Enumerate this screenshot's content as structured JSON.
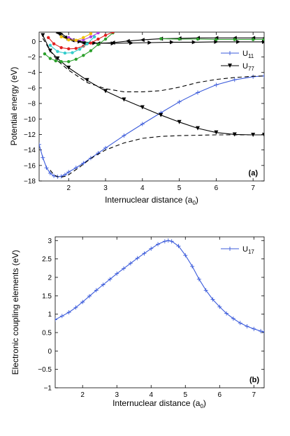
{
  "chart_data": [
    {
      "type": "line",
      "panel_label": "(a)",
      "xlabel": "Internuclear distance (a",
      "xlabel_sub": "0",
      "xlabel_end": ")",
      "ylabel": "Potential energy (eV)",
      "xlim": [
        1.2,
        7.3
      ],
      "ylim": [
        -18,
        1.2
      ],
      "xticks": [
        "2",
        "3",
        "4",
        "5",
        "6",
        "7"
      ],
      "yticks": [
        "0",
        "−2",
        "−4",
        "−6",
        "−8",
        "−10",
        "−12",
        "−14",
        "−16",
        "−18"
      ],
      "legend_placement": "top-right",
      "series": [
        {
          "name": "U",
          "sub": "11",
          "color": "#3b5bdb",
          "marker": "plus",
          "x": [
            1.2,
            1.3,
            1.4,
            1.5,
            1.6,
            1.7,
            1.8,
            1.9,
            2.0,
            2.2,
            2.4,
            2.6,
            2.8,
            3.0,
            3.5,
            4.0,
            4.5,
            5.0,
            5.5,
            6.0,
            6.5,
            7.0,
            7.3
          ],
          "y": [
            -13.3,
            -15.0,
            -16.3,
            -17.0,
            -17.35,
            -17.45,
            -17.4,
            -17.2,
            -16.85,
            -16.3,
            -15.7,
            -15.05,
            -14.4,
            -13.75,
            -12.15,
            -10.65,
            -9.2,
            -7.8,
            -6.6,
            -5.6,
            -4.95,
            -4.55,
            -4.45
          ]
        },
        {
          "name": "U",
          "sub": "77",
          "color": "#000000",
          "marker": "tri-down",
          "x": [
            1.3,
            1.5,
            1.7,
            2.0,
            2.5,
            3.0,
            3.5,
            4.0,
            4.5,
            5.0,
            5.5,
            6.0,
            6.5,
            7.0,
            7.3
          ],
          "y": [
            0.8,
            -1.2,
            -2.2,
            -3.4,
            -5.0,
            -6.4,
            -7.5,
            -8.5,
            -9.5,
            -10.4,
            -11.2,
            -11.75,
            -12.0,
            -12.05,
            -12.05
          ]
        },
        {
          "name": "",
          "color": "#000000",
          "marker": "tri-left",
          "x": [
            1.7,
            1.9,
            2.1,
            2.4,
            2.8,
            3.2,
            3.6,
            4.0,
            4.5,
            5.0,
            5.5,
            6.0,
            6.5,
            7.0,
            7.3
          ],
          "y": [
            1.1,
            0.5,
            0.15,
            -0.2,
            -0.25,
            -0.15,
            0.05,
            0.2,
            0.35,
            0.4,
            0.45,
            0.45,
            0.45,
            0.45,
            0.45
          ]
        },
        {
          "name": "",
          "color": "#000000",
          "marker": "tri-right",
          "x": [
            1.8,
            2.0,
            2.3,
            2.7,
            3.2,
            3.7,
            4.2,
            4.8,
            5.4,
            6.0,
            6.6,
            7.3
          ],
          "y": [
            1.0,
            0.4,
            0.0,
            -0.2,
            -0.25,
            -0.2,
            -0.15,
            -0.1,
            -0.1,
            -0.05,
            -0.05,
            -0.05
          ]
        },
        {
          "name": "",
          "color": "#2ca02c",
          "marker": "dot",
          "x": [
            1.35,
            1.5,
            1.65,
            1.8,
            2.0,
            2.2,
            2.4,
            2.6,
            2.8,
            3.0,
            3.2
          ],
          "y": [
            -1.6,
            -2.2,
            -2.5,
            -2.6,
            -2.6,
            -2.3,
            -1.8,
            -1.2,
            -0.4,
            0.3,
            1.1
          ]
        },
        {
          "name": "",
          "color": "#2ca02c",
          "marker": "dot",
          "x": [
            4.5,
            5.0,
            5.5,
            6.0,
            6.5,
            7.0,
            7.3
          ],
          "y": [
            0.35,
            0.3,
            0.3,
            0.25,
            0.25,
            0.25,
            0.25
          ]
        },
        {
          "name": "",
          "color": "#e02020",
          "marker": "dot",
          "x": [
            1.45,
            1.6,
            1.8,
            2.0,
            2.2,
            2.4,
            2.6,
            2.8,
            3.0,
            3.2
          ],
          "y": [
            0.5,
            -0.3,
            -0.8,
            -0.95,
            -0.9,
            -0.6,
            -0.2,
            0.3,
            0.8,
            1.2
          ]
        },
        {
          "name": "",
          "color": "#33cccc",
          "marker": "dot",
          "x": [
            1.5,
            1.7,
            1.9,
            2.1,
            2.3,
            2.5,
            2.7
          ],
          "y": [
            -0.5,
            -1.3,
            -1.5,
            -1.45,
            -1.0,
            -0.3,
            0.6
          ]
        },
        {
          "name": "",
          "color": "#b040e0",
          "marker": "dot",
          "x": [
            2.0,
            2.2,
            2.4,
            2.6,
            2.8
          ],
          "y": [
            0.5,
            0.1,
            0.2,
            0.6,
            1.1
          ]
        },
        {
          "name": "",
          "color": "#f0c000",
          "marker": "dot",
          "x": [
            1.8,
            2.0,
            2.2,
            2.4,
            2.6
          ],
          "y": [
            0.6,
            0.2,
            0.15,
            0.5,
            1.0
          ]
        },
        {
          "name": "",
          "color": "#000000",
          "marker": "none",
          "dash": true,
          "x": [
            1.3,
            1.5,
            1.7,
            2.0,
            2.5,
            3.0,
            3.5,
            4.0,
            4.5,
            5.0,
            5.5,
            6.0,
            6.5,
            7.0,
            7.3
          ],
          "y": [
            0.4,
            -1.2,
            -2.5,
            -3.7,
            -5.3,
            -6.1,
            -6.5,
            -6.5,
            -6.35,
            -5.9,
            -5.3,
            -4.9,
            -4.65,
            -4.5,
            -4.45
          ]
        },
        {
          "name": "",
          "color": "#000000",
          "marker": "none",
          "dash": true,
          "x": [
            1.5,
            1.6,
            1.7,
            1.8,
            1.9,
            2.0,
            2.3,
            2.6,
            3.0,
            3.5,
            4.0,
            4.5,
            5.0,
            6.0,
            7.0,
            7.3
          ],
          "y": [
            -16.6,
            -17.2,
            -17.45,
            -17.5,
            -17.4,
            -17.2,
            -16.2,
            -15.1,
            -14.0,
            -13.1,
            -12.5,
            -12.25,
            -12.15,
            -12.05,
            -12.05,
            -12.05
          ]
        }
      ]
    },
    {
      "type": "line",
      "panel_label": "(b)",
      "xlabel": "Internuclear distance (a",
      "xlabel_sub": "0",
      "xlabel_end": ")",
      "ylabel": "Electronic coupling elements (eV)",
      "xlim": [
        1.2,
        7.3
      ],
      "ylim": [
        -1,
        3.1
      ],
      "xticks": [
        "2",
        "3",
        "4",
        "5",
        "6",
        "7"
      ],
      "yticks": [
        "3",
        "2.5",
        "2",
        "1.5",
        "1",
        "0.5",
        "0",
        "−0.5",
        "−1"
      ],
      "legend_placement": "top-right",
      "series": [
        {
          "name": "U",
          "sub": "17",
          "color": "#3b5bdb",
          "marker": "plus",
          "x": [
            1.2,
            1.4,
            1.6,
            1.8,
            2.0,
            2.2,
            2.4,
            2.6,
            2.8,
            3.0,
            3.2,
            3.4,
            3.6,
            3.8,
            4.0,
            4.2,
            4.4,
            4.5,
            4.6,
            4.8,
            5.0,
            5.2,
            5.4,
            5.6,
            5.8,
            6.0,
            6.2,
            6.4,
            6.6,
            6.8,
            7.0,
            7.2,
            7.3
          ],
          "y": [
            0.85,
            0.95,
            1.05,
            1.18,
            1.33,
            1.49,
            1.65,
            1.8,
            1.95,
            2.1,
            2.24,
            2.38,
            2.52,
            2.65,
            2.78,
            2.9,
            2.98,
            3.0,
            2.98,
            2.85,
            2.6,
            2.3,
            1.95,
            1.65,
            1.4,
            1.2,
            1.02,
            0.88,
            0.76,
            0.67,
            0.6,
            0.54,
            0.52
          ]
        }
      ]
    }
  ]
}
